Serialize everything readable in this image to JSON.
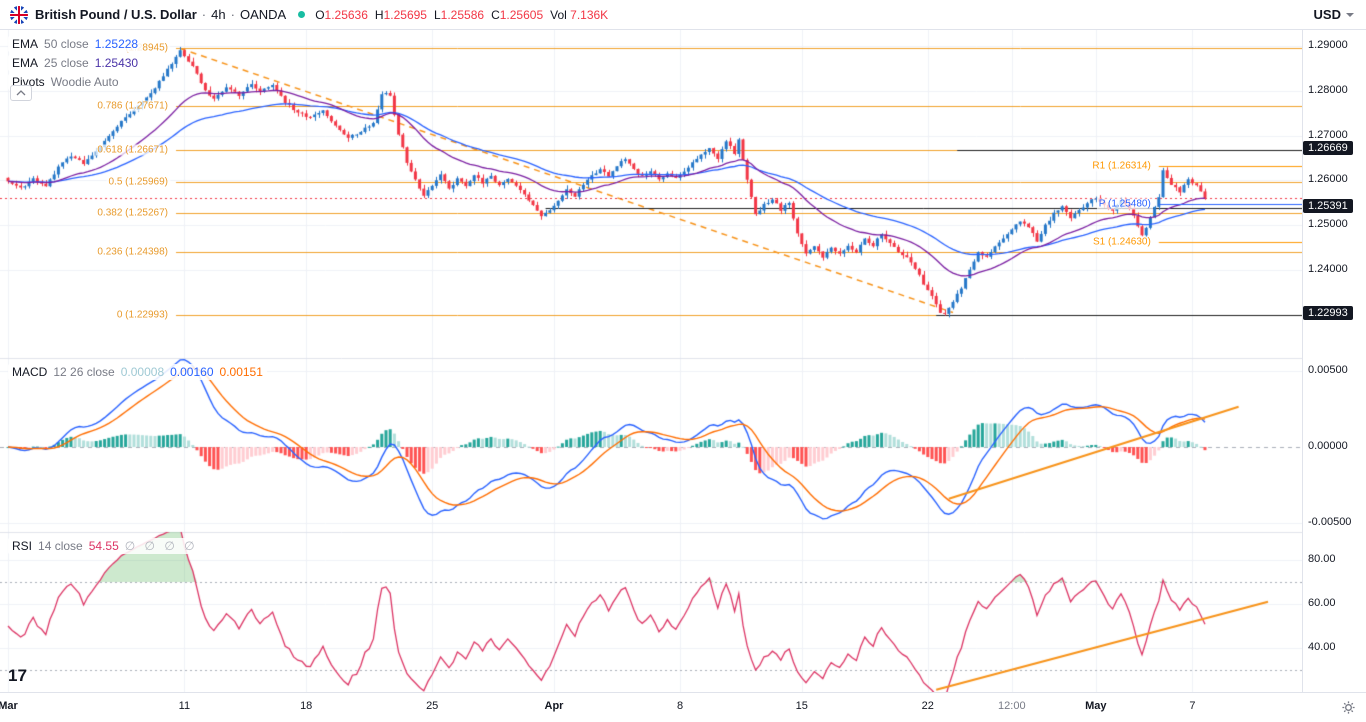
{
  "header": {
    "title": "British Pound / U.S. Dollar",
    "sep": "·",
    "interval": "4h",
    "exchange": "OANDA",
    "status_dot_color": "#19BDA2",
    "ohlc_items": [
      {
        "label": "O",
        "value": "1.25636"
      },
      {
        "label": "H",
        "value": "1.25695"
      },
      {
        "label": "L",
        "value": "1.25586"
      },
      {
        "label": "C",
        "value": "1.25605"
      }
    ],
    "volume": {
      "label": "Vol",
      "value": "7.136K"
    },
    "ohlc_value_color": "#F23645",
    "currency_selector": "USD"
  },
  "legends": {
    "ema50": {
      "label": "EMA",
      "params": "50 close",
      "value": "1.25228"
    },
    "ema25": {
      "label": "EMA",
      "params": "25 close",
      "value": "1.25430"
    },
    "pivots": {
      "label": "Pivots",
      "params": "Woodie Auto"
    },
    "collapse_icon": "chevron-up",
    "macd": {
      "label": "MACD",
      "params": "12 26 close",
      "hist_value": "0.00008",
      "macd_value": "0.00160",
      "signal_value": "0.00151"
    },
    "rsi": {
      "label": "RSI",
      "params": "14 close",
      "value": "54.55",
      "empty_values": "∅ ∅ ∅ ∅"
    }
  },
  "watermark": "17",
  "chart_data": {
    "type": "candlestick",
    "title": "British Pound / U.S. Dollar, 4h, OANDA",
    "n_candles": 286,
    "x_axis": {
      "labels": [
        {
          "i": 0,
          "t": "Mar",
          "bold": true
        },
        {
          "i": 42,
          "t": "11"
        },
        {
          "i": 71,
          "t": "18"
        },
        {
          "i": 101,
          "t": "25"
        },
        {
          "i": 130,
          "t": "Apr",
          "bold": true
        },
        {
          "i": 160,
          "t": "8"
        },
        {
          "i": 189,
          "t": "15"
        },
        {
          "i": 219,
          "t": "22"
        },
        {
          "i": 239,
          "t": "12:00",
          "minor": true
        },
        {
          "i": 259,
          "t": "May",
          "bold": true
        },
        {
          "i": 282,
          "t": "7"
        }
      ]
    },
    "price_pane": {
      "range": [
        1.22036,
        1.29357
      ],
      "ticks": [
        {
          "t": "1.29000",
          "v": 1.29
        },
        {
          "t": "1.28000",
          "v": 1.28
        },
        {
          "t": "1.27000",
          "v": 1.27
        },
        {
          "t": "1.26000",
          "v": 1.26
        },
        {
          "t": "1.25000",
          "v": 1.25
        },
        {
          "t": "1.24000",
          "v": 1.24
        }
      ],
      "close_path": [
        [
          0,
          1.26
        ],
        [
          3,
          1.2582
        ],
        [
          6,
          1.2605
        ],
        [
          9,
          1.2585
        ],
        [
          12,
          1.263
        ],
        [
          15,
          1.2655
        ],
        [
          18,
          1.2638
        ],
        [
          21,
          1.2662
        ],
        [
          24,
          1.27
        ],
        [
          27,
          1.273
        ],
        [
          30,
          1.2755
        ],
        [
          33,
          1.2785
        ],
        [
          36,
          1.282
        ],
        [
          39,
          1.286
        ],
        [
          41,
          1.2892
        ],
        [
          43,
          1.2868
        ],
        [
          45,
          1.284
        ],
        [
          47,
          1.28
        ],
        [
          49,
          1.278
        ],
        [
          52,
          1.281
        ],
        [
          55,
          1.279
        ],
        [
          58,
          1.2815
        ],
        [
          60,
          1.28
        ],
        [
          63,
          1.2815
        ],
        [
          66,
          1.2775
        ],
        [
          69,
          1.275
        ],
        [
          72,
          1.2742
        ],
        [
          75,
          1.2755
        ],
        [
          78,
          1.272
        ],
        [
          81,
          1.2695
        ],
        [
          84,
          1.271
        ],
        [
          87,
          1.2725
        ],
        [
          89,
          1.2795
        ],
        [
          91,
          1.279
        ],
        [
          93,
          1.2705
        ],
        [
          95,
          1.264
        ],
        [
          97,
          1.26
        ],
        [
          99,
          1.2565
        ],
        [
          101,
          1.259
        ],
        [
          103,
          1.2615
        ],
        [
          105,
          1.258
        ],
        [
          107,
          1.2605
        ],
        [
          109,
          1.259
        ],
        [
          111,
          1.2612
        ],
        [
          113,
          1.2595
        ],
        [
          115,
          1.2608
        ],
        [
          117,
          1.259
        ],
        [
          119,
          1.2605
        ],
        [
          121,
          1.2588
        ],
        [
          123,
          1.257
        ],
        [
          125,
          1.2545
        ],
        [
          127,
          1.2518
        ],
        [
          129,
          1.2532
        ],
        [
          131,
          1.2555
        ],
        [
          133,
          1.258
        ],
        [
          135,
          1.2565
        ],
        [
          137,
          1.259
        ],
        [
          139,
          1.261
        ],
        [
          141,
          1.2625
        ],
        [
          143,
          1.261
        ],
        [
          145,
          1.2632
        ],
        [
          147,
          1.265
        ],
        [
          149,
          1.2625
        ],
        [
          151,
          1.2608
        ],
        [
          153,
          1.2622
        ],
        [
          155,
          1.26
        ],
        [
          157,
          1.2618
        ],
        [
          159,
          1.2605
        ],
        [
          161,
          1.2622
        ],
        [
          163,
          1.264
        ],
        [
          165,
          1.2655
        ],
        [
          167,
          1.2675
        ],
        [
          169,
          1.265
        ],
        [
          171,
          1.2688
        ],
        [
          173,
          1.266
        ],
        [
          174,
          1.269
        ],
        [
          176,
          1.26
        ],
        [
          178,
          1.2525
        ],
        [
          180,
          1.2545
        ],
        [
          182,
          1.256
        ],
        [
          184,
          1.2535
        ],
        [
          186,
          1.255
        ],
        [
          188,
          1.248
        ],
        [
          190,
          1.2435
        ],
        [
          192,
          1.2455
        ],
        [
          194,
          1.243
        ],
        [
          196,
          1.2448
        ],
        [
          198,
          1.2435
        ],
        [
          200,
          1.2455
        ],
        [
          202,
          1.244
        ],
        [
          204,
          1.247
        ],
        [
          206,
          1.2455
        ],
        [
          208,
          1.248
        ],
        [
          210,
          1.246
        ],
        [
          212,
          1.2442
        ],
        [
          214,
          1.243
        ],
        [
          216,
          1.2405
        ],
        [
          218,
          1.237
        ],
        [
          220,
          1.234
        ],
        [
          222,
          1.2305
        ],
        [
          223,
          1.23
        ],
        [
          225,
          1.233
        ],
        [
          227,
          1.236
        ],
        [
          229,
          1.24
        ],
        [
          231,
          1.244
        ],
        [
          233,
          1.243
        ],
        [
          235,
          1.245
        ],
        [
          237,
          1.247
        ],
        [
          239,
          1.249
        ],
        [
          241,
          1.251
        ],
        [
          243,
          1.2495
        ],
        [
          245,
          1.2465
        ],
        [
          247,
          1.25
        ],
        [
          249,
          1.2525
        ],
        [
          251,
          1.2545
        ],
        [
          253,
          1.2515
        ],
        [
          255,
          1.2535
        ],
        [
          257,
          1.255
        ],
        [
          259,
          1.256
        ],
        [
          261,
          1.2545
        ],
        [
          263,
          1.253
        ],
        [
          265,
          1.2555
        ],
        [
          267,
          1.254
        ],
        [
          269,
          1.25
        ],
        [
          270,
          1.2478
        ],
        [
          272,
          1.2515
        ],
        [
          274,
          1.2565
        ],
        [
          275,
          1.262
        ],
        [
          277,
          1.2592
        ],
        [
          279,
          1.2575
        ],
        [
          281,
          1.2602
        ],
        [
          283,
          1.2588
        ],
        [
          285,
          1.25605
        ]
      ],
      "ema_periods": [
        50,
        25
      ],
      "fib_start_idx": 40,
      "fib_levels": [
        {
          "label": "(1.28945)",
          "value": 1.28945
        },
        {
          "label": "0.786 (1.27671)",
          "value": 1.27671
        },
        {
          "label": "0.618 (1.26671)",
          "value": 1.26671
        },
        {
          "label": "0.5 (1.25969)",
          "value": 1.25969
        },
        {
          "label": "0.382 (1.25267)",
          "value": 1.25267
        },
        {
          "label": "0.236 (1.24398)",
          "value": 1.24398
        },
        {
          "label": "0 (1.22993)",
          "value": 1.22993
        }
      ],
      "pivot_segments": [
        {
          "label": "R1 (1.26314)",
          "value": 1.26314,
          "color": "#FF9800",
          "from_i": 274
        },
        {
          "label": "P (1.25480)",
          "value": 1.2548,
          "color": "#2962FF",
          "from_i": 274
        },
        {
          "label": "S1 (1.24630)",
          "value": 1.2463,
          "color": "#FF9800",
          "from_i": 274
        }
      ],
      "black_lines": [
        {
          "tag": "1.26669",
          "value": 1.26669,
          "from_i": 226
        },
        {
          "tag": "1.25391",
          "value": 1.25391,
          "from_i": 128
        },
        {
          "tag": "1.22993",
          "value": 1.22993,
          "from_i": 221
        }
      ],
      "last_price_line": {
        "value": 1.25605,
        "style": "dotted"
      },
      "trendline": {
        "from": [
          41,
          1.28945
        ],
        "to": [
          225,
          1.2305
        ],
        "dashed": true
      }
    },
    "macd_pane": {
      "params": [
        12,
        26,
        9
      ],
      "range": [
        -0.00559,
        0.00586
      ],
      "ticks": [
        {
          "t": "0.00500",
          "v": 0.005
        },
        {
          "t": "0.00000",
          "v": 0
        },
        {
          "t": "-0.00500",
          "v": -0.005
        }
      ],
      "trendline": {
        "from": [
          224,
          -0.0034
        ],
        "to": [
          293,
          0.00265
        ]
      }
    },
    "rsi_pane": {
      "period": 14,
      "range": [
        20,
        92.7
      ],
      "ticks": [
        {
          "t": "80.00",
          "v": 80
        },
        {
          "t": "60.00",
          "v": 60
        },
        {
          "t": "40.00",
          "v": 40
        }
      ],
      "bands": [
        70,
        30
      ],
      "trendline": {
        "from": [
          221,
          21
        ],
        "to": [
          300,
          61
        ]
      }
    },
    "colors": {
      "up": "#2577C8",
      "down": "#F23645",
      "ema50": "#2962FF",
      "ema25": "#7B1FA2",
      "fib": "#F0A029",
      "trend": "#F7931A",
      "macd_line": "#2962FF",
      "signal_line": "#FF6D00",
      "hist_up": "#26A69A",
      "hist_up_weak": "#B2DFDB",
      "hist_down": "#FF5252",
      "hist_down_weak": "#FFCDD2",
      "rsi": "#DC3565",
      "rsi_fill": "rgba(76,175,80,0.28)",
      "grid": "#EFF2F7",
      "divider": "#E0E3EB",
      "band_dash": "#A9AEB8",
      "black_line": "#1D1D1D"
    }
  }
}
